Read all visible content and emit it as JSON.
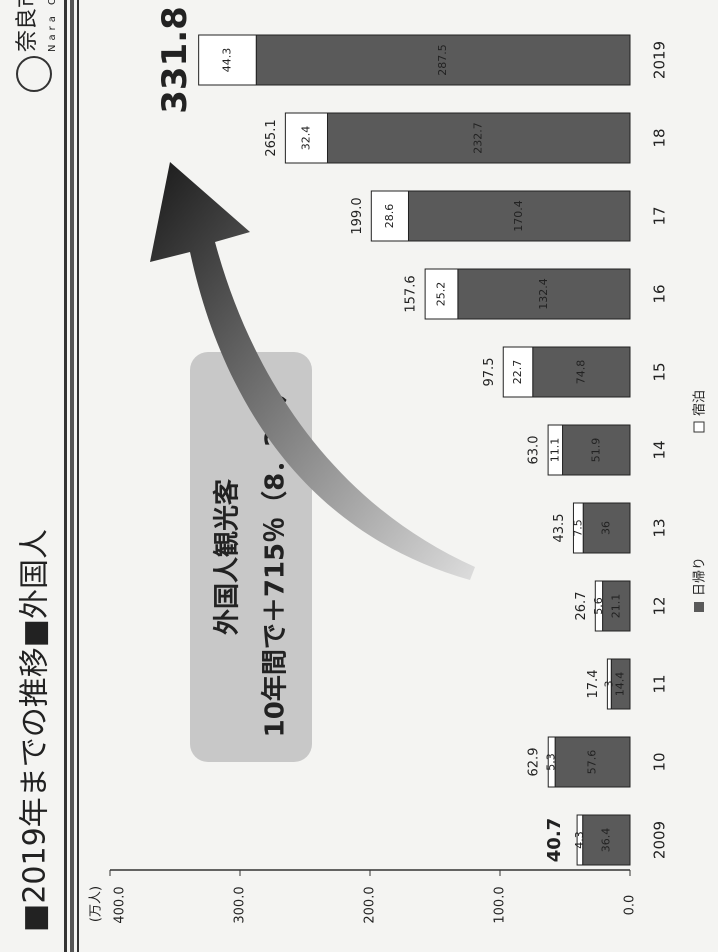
{
  "logo": {
    "name": "奈良市",
    "sub": "Nara City"
  },
  "chart_data": {
    "type": "bar",
    "stacked": true,
    "title": "■2019年までの推移■外国人",
    "unit_label": "(万人)",
    "categories": [
      "2009",
      "10",
      "11",
      "12",
      "13",
      "14",
      "15",
      "16",
      "17",
      "18",
      "2019"
    ],
    "series": [
      {
        "name": "日帰り",
        "color": "#5a5a5a",
        "values": [
          36.4,
          57.6,
          14.4,
          21.1,
          36.0,
          51.9,
          74.8,
          132.4,
          170.4,
          232.7,
          287.5
        ]
      },
      {
        "name": "宿泊",
        "color": "#ffffff",
        "values": [
          4.3,
          5.3,
          3.0,
          5.6,
          7.5,
          11.1,
          22.7,
          25.2,
          28.6,
          32.4,
          44.3
        ]
      }
    ],
    "totals": [
      40.7,
      62.9,
      17.4,
      26.7,
      43.5,
      63.0,
      97.5,
      157.6,
      199.0,
      265.1,
      331.8
    ],
    "total_labels": [
      "40.7",
      "62.9",
      "17.4",
      "26.7",
      "43.5",
      "63.0",
      "97.5",
      "157.6",
      "199.0",
      "265.1",
      "331.8"
    ],
    "ylim": [
      0,
      400
    ],
    "yticks": [
      {
        "value": 0,
        "label": "0.0"
      },
      {
        "value": 100,
        "label": "100.0"
      },
      {
        "value": 200,
        "label": "200.0"
      },
      {
        "value": 300,
        "label": "300.0"
      },
      {
        "value": 400,
        "label": "400.0"
      }
    ],
    "annotation": {
      "title": "外国人観光客",
      "text": "10年間で＋715％（8．2倍）"
    }
  }
}
